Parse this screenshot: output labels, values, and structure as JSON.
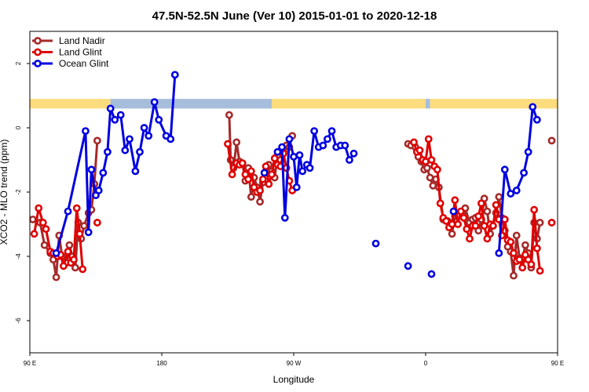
{
  "chart_data": {
    "type": "line",
    "title": "47.5N-52.5N June (Ver 10)   2015-01-01 to 2020-12-18",
    "xlabel": "Longitude",
    "ylabel": "XCO2 - MLO trend (ppm)",
    "xlim": [
      90,
      450
    ],
    "ylim": [
      -7,
      3
    ],
    "x_ticks": [
      {
        "value": 90,
        "label": "90 E"
      },
      {
        "value": 180,
        "label": "180"
      },
      {
        "value": 270,
        "label": "90 W"
      },
      {
        "value": 360,
        "label": "0"
      },
      {
        "value": 450,
        "label": "90 E"
      },
      {
        "value": 540,
        "label": "180"
      }
    ],
    "y_ticks": [
      {
        "value": -6,
        "label": "-6"
      },
      {
        "value": -4,
        "label": "-4"
      },
      {
        "value": -2,
        "label": "-2"
      },
      {
        "value": 0,
        "label": "0"
      },
      {
        "value": 2,
        "label": "2"
      }
    ],
    "legend_position": "top-left",
    "land_ocean_strip": {
      "y_range": [
        0.6,
        0.9
      ],
      "land_color": "#fddc7e",
      "ocean_color": "#a6bddb",
      "segments": [
        {
          "from": 90,
          "to": 145,
          "kind": "land"
        },
        {
          "from": 145,
          "to": 255,
          "kind": "ocean"
        },
        {
          "from": 255,
          "to": 360,
          "kind": "land"
        },
        {
          "from": 360,
          "to": 363,
          "kind": "ocean"
        },
        {
          "from": 363,
          "to": 490,
          "kind": "land"
        },
        {
          "from": 490,
          "to": 540,
          "kind": "ocean"
        }
      ]
    },
    "series": [
      {
        "name": "Land Nadir",
        "color": "#a52a2a",
        "points": [
          [
            92,
            -2.85
          ],
          [
            97,
            -2.95
          ],
          [
            100,
            -3.65
          ],
          [
            104,
            -3.9
          ],
          [
            106,
            -4.1
          ],
          [
            108,
            -4.65
          ],
          [
            110,
            -3.35
          ],
          [
            112,
            -4.0
          ],
          [
            115,
            -4.2
          ],
          [
            117,
            -3.65
          ],
          [
            119,
            -4.0
          ],
          [
            121,
            -4.35
          ],
          [
            123,
            -2.95
          ],
          [
            125,
            -3.45
          ],
          [
            127,
            -3.05
          ],
          [
            130,
            -2.65
          ],
          [
            132,
            -2.55
          ],
          [
            134,
            -1.75
          ],
          [
            136,
            -0.4
          ],
          [
            null,
            null
          ],
          [
            226,
            0.4
          ],
          [
            227,
            -1.0
          ],
          [
            229,
            -1.25
          ],
          [
            231,
            -0.45
          ],
          [
            233,
            -1.05
          ],
          [
            235,
            -1.1
          ],
          [
            237,
            -1.65
          ],
          [
            239,
            -1.25
          ],
          [
            241,
            -2.15
          ],
          [
            243,
            -1.55
          ],
          [
            245,
            -1.85
          ],
          [
            247,
            -2.3
          ],
          [
            249,
            -1.7
          ],
          [
            251,
            -1.35
          ],
          [
            253,
            -1.15
          ],
          [
            255,
            -1.35
          ],
          [
            257,
            -1.55
          ],
          [
            259,
            -0.85
          ],
          [
            261,
            -1.0
          ],
          [
            263,
            -0.75
          ],
          [
            265,
            -0.55
          ],
          [
            267,
            -0.6
          ],
          [
            269,
            -0.25
          ],
          [
            null,
            null
          ],
          [
            348,
            -0.5
          ],
          [
            350,
            -0.55
          ],
          [
            353,
            -0.6
          ],
          [
            355,
            -0.9
          ],
          [
            357,
            -1.05
          ],
          [
            359,
            -1.3
          ],
          [
            361,
            -1.25
          ],
          [
            363,
            -1.55
          ],
          [
            365,
            -1.8
          ],
          [
            367,
            -1.6
          ],
          [
            369,
            -1.85
          ],
          [
            372,
            -2.85
          ],
          [
            375,
            -2.9
          ],
          [
            378,
            -3.3
          ],
          [
            380,
            -2.75
          ],
          [
            382,
            -2.75
          ],
          [
            385,
            -2.65
          ],
          [
            387,
            -2.5
          ],
          [
            390,
            -2.95
          ],
          [
            392,
            -2.85
          ],
          [
            394,
            -2.8
          ],
          [
            396,
            -3.2
          ],
          [
            398,
            -2.85
          ],
          [
            400,
            -2.2
          ],
          [
            402,
            -2.6
          ],
          [
            404,
            -3.3
          ],
          [
            406,
            -3.05
          ],
          [
            408,
            -2.65
          ],
          [
            410,
            -2.15
          ],
          [
            412,
            -2.8
          ],
          [
            414,
            -3.2
          ],
          [
            416,
            -3.7
          ],
          [
            418,
            -3.85
          ],
          [
            420,
            -4.6
          ],
          [
            422,
            -3.35
          ],
          [
            424,
            -4.05
          ],
          [
            426,
            -4.1
          ],
          [
            428,
            -3.65
          ],
          [
            430,
            -3.9
          ],
          [
            432,
            -4.35
          ],
          [
            434,
            -2.95
          ],
          [
            436,
            -3.45
          ],
          [
            438,
            -2.95
          ],
          [
            null,
            null
          ],
          [
            446,
            -0.4
          ]
        ]
      },
      {
        "name": "Land Glint",
        "color": "#e00000",
        "points": [
          [
            93,
            -3.3
          ],
          [
            96,
            -2.5
          ],
          [
            99,
            -2.95
          ],
          [
            101,
            -3.15
          ],
          [
            104,
            -3.85
          ],
          [
            106,
            -3.9
          ],
          [
            109,
            -4.0
          ],
          [
            111,
            -3.95
          ],
          [
            113,
            -4.3
          ],
          [
            116,
            -3.85
          ],
          [
            118,
            -4.2
          ],
          [
            120,
            -4.1
          ],
          [
            122,
            -2.5
          ],
          [
            124,
            -3.3
          ],
          [
            126,
            -4.4
          ],
          [
            null,
            null
          ],
          [
            136,
            -2.95
          ],
          [
            null,
            null
          ],
          [
            225,
            -0.5
          ],
          [
            228,
            -1.45
          ],
          [
            231,
            -1.1
          ],
          [
            233,
            -1.15
          ],
          [
            235,
            -1.1
          ],
          [
            237,
            -1.45
          ],
          [
            239,
            -1.6
          ],
          [
            241,
            -1.35
          ],
          [
            243,
            -1.85
          ],
          [
            245,
            -2.0
          ],
          [
            247,
            -1.95
          ],
          [
            249,
            -1.6
          ],
          [
            251,
            -1.2
          ],
          [
            253,
            -1.75
          ],
          [
            255,
            -1.45
          ],
          [
            257,
            -0.95
          ],
          [
            259,
            -1.15
          ],
          [
            261,
            -1.2
          ],
          [
            263,
            -0.8
          ],
          [
            265,
            -1.25
          ],
          [
            267,
            -1.65
          ],
          [
            269,
            -1.95
          ],
          [
            null,
            null
          ],
          [
            352,
            -0.45
          ],
          [
            354,
            -0.75
          ],
          [
            356,
            -0.7
          ],
          [
            358,
            -1.0
          ],
          [
            360,
            -1.05
          ],
          [
            362,
            -0.35
          ],
          [
            364,
            -1.0
          ],
          [
            366,
            -1.2
          ],
          [
            368,
            -1.3
          ],
          [
            370,
            -2.35
          ],
          [
            372,
            -2.8
          ],
          [
            374,
            -2.9
          ],
          [
            376,
            -3.1
          ],
          [
            378,
            -3.0
          ],
          [
            380,
            -2.25
          ],
          [
            382,
            -3.0
          ],
          [
            384,
            -2.6
          ],
          [
            386,
            -2.8
          ],
          [
            388,
            -3.15
          ],
          [
            390,
            -3.45
          ],
          [
            392,
            -3.05
          ],
          [
            394,
            -3.05
          ],
          [
            396,
            -2.75
          ],
          [
            398,
            -2.35
          ],
          [
            400,
            -3.05
          ],
          [
            402,
            -3.45
          ],
          [
            404,
            -3.0
          ],
          [
            406,
            -3.05
          ],
          [
            408,
            -2.4
          ],
          [
            410,
            -2.85
          ],
          [
            412,
            -3.35
          ],
          [
            414,
            -2.85
          ],
          [
            416,
            -3.5
          ],
          [
            418,
            -3.55
          ],
          [
            420,
            -3.9
          ],
          [
            422,
            -4.15
          ],
          [
            424,
            -4.1
          ],
          [
            426,
            -4.35
          ],
          [
            428,
            -3.95
          ],
          [
            430,
            -4.1
          ],
          [
            432,
            -4.25
          ],
          [
            434,
            -2.55
          ],
          [
            436,
            -3.75
          ],
          [
            438,
            -4.45
          ],
          [
            null,
            null
          ],
          [
            446,
            -2.95
          ]
        ]
      },
      {
        "name": "Ocean Glint",
        "color": "#0000e0",
        "points": [
          [
            108,
            -3.9
          ],
          [
            116,
            -2.6
          ],
          [
            128,
            -0.1
          ],
          [
            130,
            -3.25
          ],
          [
            132,
            -1.3
          ],
          [
            135,
            -2.1
          ],
          [
            137,
            -1.95
          ],
          [
            140,
            -1.4
          ],
          [
            143,
            -0.75
          ],
          [
            145,
            0.6
          ],
          [
            148,
            0.25
          ],
          [
            152,
            0.4
          ],
          [
            155,
            -0.7
          ],
          [
            158,
            -0.35
          ],
          [
            162,
            -1.35
          ],
          [
            165,
            -0.75
          ],
          [
            168,
            0.0
          ],
          [
            171,
            -0.25
          ],
          [
            175,
            0.8
          ],
          [
            178,
            0.25
          ],
          [
            183,
            -0.25
          ],
          [
            186,
            -0.35
          ],
          [
            189,
            1.65
          ],
          [
            null,
            null
          ],
          [
            250,
            -1.4
          ],
          [
            null,
            null
          ],
          [
            259,
            -0.75
          ],
          [
            262,
            -0.6
          ],
          [
            264,
            -2.8
          ],
          [
            267,
            -0.35
          ],
          [
            270,
            -0.9
          ],
          [
            272,
            -1.85
          ],
          [
            274,
            -0.85
          ],
          [
            276,
            -1.35
          ],
          [
            279,
            -1.15
          ],
          [
            281,
            -1.25
          ],
          [
            284,
            -0.1
          ],
          [
            287,
            -0.6
          ],
          [
            290,
            -0.55
          ],
          [
            293,
            -0.35
          ],
          [
            296,
            -0.1
          ],
          [
            299,
            -0.6
          ],
          [
            302,
            -0.55
          ],
          [
            305,
            -0.55
          ],
          [
            308,
            -1.0
          ],
          [
            311,
            -0.8
          ],
          [
            null,
            null
          ],
          [
            326,
            -3.6
          ],
          [
            null,
            null
          ],
          [
            348,
            -4.3
          ],
          [
            null,
            null
          ],
          [
            364,
            -4.55
          ],
          [
            null,
            null
          ],
          [
            379,
            -2.6
          ],
          [
            null,
            null
          ],
          [
            410,
            -3.9
          ],
          [
            414,
            -1.3
          ],
          [
            418,
            -2.05
          ],
          [
            422,
            -1.95
          ],
          [
            427,
            -1.4
          ],
          [
            430,
            -0.75
          ],
          [
            433,
            0.65
          ],
          [
            436,
            0.25
          ]
        ]
      }
    ]
  }
}
